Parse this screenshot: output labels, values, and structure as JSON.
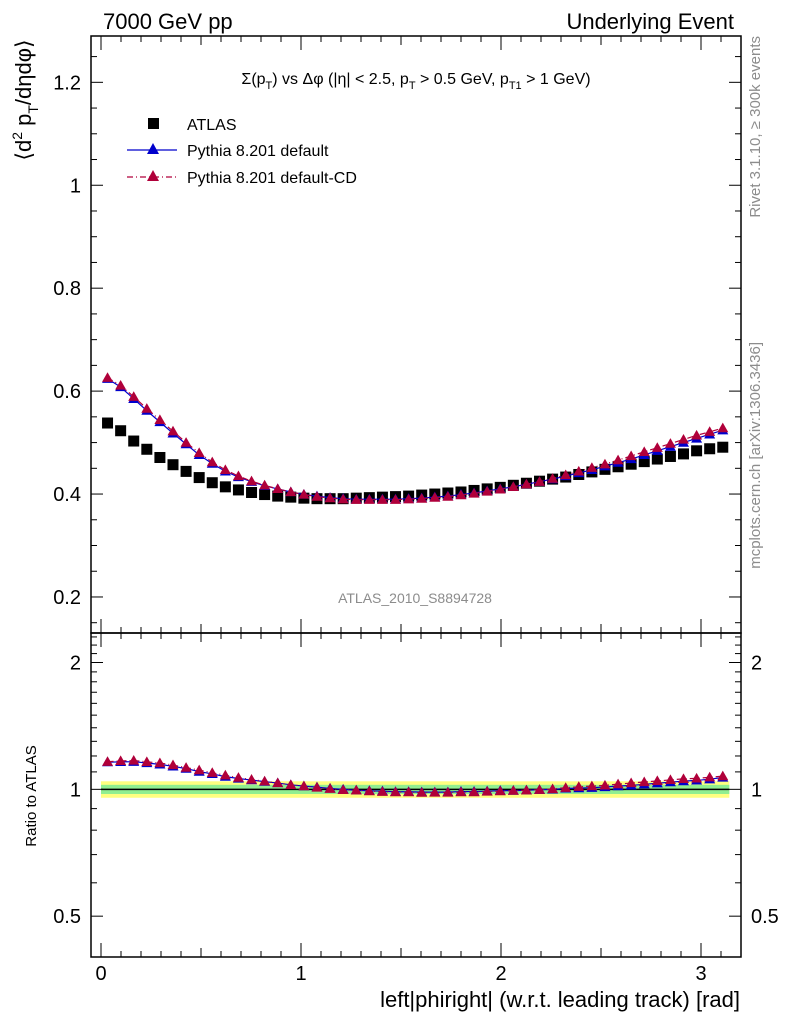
{
  "header": {
    "left": "7000 GeV pp",
    "right": "Underlying Event"
  },
  "side_notes": {
    "rivet": "Rivet 3.1.10, ≥ 300k events",
    "mcplots": "mcplots.cern.ch [arXiv:1306.3436]"
  },
  "plot_title": "Σ(p_T) vs Δφ (|η| < 2.5, p_T > 0.5 GeV, p_T1 > 1 GeV)",
  "analysis_label": "ATLAS_2010_S8894728",
  "colors": {
    "atlas": "#000000",
    "pythia_default": "#0000cc",
    "pythia_cd": "#b0003a",
    "band_yellow": "#ffff80",
    "band_green": "#90ee90"
  },
  "chart_data": [
    {
      "type": "scatter",
      "panel": "main",
      "xlabel": "left|phiright| (w.r.t. leading track) [rad]",
      "ylabel": "⟨d² p_T/dηdφ⟩",
      "xlim": [
        -0.05,
        3.2
      ],
      "ylim": [
        0.13,
        1.29
      ],
      "yticks": [
        0.2,
        0.4,
        0.6,
        0.8,
        1,
        1.2
      ],
      "xticks": [
        0,
        1,
        2,
        3
      ],
      "legend_position": "top-left",
      "x": [
        0.0327,
        0.0982,
        0.1636,
        0.2291,
        0.2945,
        0.36,
        0.4254,
        0.4909,
        0.5563,
        0.6218,
        0.6872,
        0.7527,
        0.8181,
        0.8836,
        0.949,
        1.0145,
        1.0799,
        1.1454,
        1.2108,
        1.2763,
        1.3417,
        1.4072,
        1.4726,
        1.5381,
        1.6035,
        1.669,
        1.7344,
        1.7999,
        1.8653,
        1.9308,
        1.9962,
        2.0617,
        2.1271,
        2.1926,
        2.258,
        2.3235,
        2.3889,
        2.4544,
        2.5198,
        2.5853,
        2.6507,
        2.7162,
        2.7816,
        2.8471,
        2.9125,
        2.978,
        3.0434,
        3.1089
      ],
      "series": [
        {
          "name": "ATLAS",
          "marker": "square",
          "values": [
            0.538,
            0.523,
            0.503,
            0.487,
            0.471,
            0.457,
            0.444,
            0.432,
            0.422,
            0.414,
            0.408,
            0.403,
            0.399,
            0.396,
            0.394,
            0.392,
            0.391,
            0.391,
            0.391,
            0.392,
            0.393,
            0.394,
            0.395,
            0.396,
            0.398,
            0.4,
            0.402,
            0.404,
            0.407,
            0.41,
            0.413,
            0.417,
            0.421,
            0.425,
            0.429,
            0.433,
            0.438,
            0.443,
            0.448,
            0.453,
            0.458,
            0.463,
            0.468,
            0.473,
            0.478,
            0.484,
            0.488,
            0.491
          ]
        },
        {
          "name": "Pythia 8.201 default",
          "marker": "triangle",
          "values": [
            0.624,
            0.608,
            0.585,
            0.562,
            0.54,
            0.518,
            0.497,
            0.476,
            0.459,
            0.444,
            0.433,
            0.424,
            0.416,
            0.41,
            0.404,
            0.399,
            0.396,
            0.393,
            0.391,
            0.39,
            0.39,
            0.39,
            0.39,
            0.391,
            0.392,
            0.394,
            0.396,
            0.399,
            0.402,
            0.406,
            0.41,
            0.414,
            0.419,
            0.424,
            0.429,
            0.435,
            0.441,
            0.447,
            0.454,
            0.461,
            0.468,
            0.476,
            0.484,
            0.492,
            0.5,
            0.508,
            0.516,
            0.524
          ]
        },
        {
          "name": "Pythia 8.201 default-CD",
          "marker": "triangle",
          "values": [
            0.626,
            0.611,
            0.589,
            0.566,
            0.544,
            0.522,
            0.5,
            0.48,
            0.462,
            0.447,
            0.435,
            0.425,
            0.417,
            0.41,
            0.404,
            0.399,
            0.395,
            0.392,
            0.39,
            0.389,
            0.389,
            0.389,
            0.389,
            0.39,
            0.391,
            0.393,
            0.395,
            0.398,
            0.401,
            0.405,
            0.409,
            0.414,
            0.419,
            0.424,
            0.43,
            0.437,
            0.444,
            0.451,
            0.458,
            0.466,
            0.474,
            0.482,
            0.49,
            0.498,
            0.506,
            0.514,
            0.521,
            0.528
          ]
        }
      ]
    },
    {
      "type": "scatter",
      "panel": "ratio",
      "ylabel": "Ratio to ATLAS",
      "xlabel": "left|phiright| (w.r.t. leading track) [rad]",
      "ylim": [
        0.4,
        2.35
      ],
      "ylog": true,
      "yticks": [
        0.5,
        1,
        2
      ],
      "xticks": [
        0,
        1,
        2,
        3
      ],
      "band": {
        "yellow": [
          0.955,
          1.045
        ],
        "green": [
          0.975,
          1.025
        ]
      },
      "x": [
        0.0327,
        0.0982,
        0.1636,
        0.2291,
        0.2945,
        0.36,
        0.4254,
        0.4909,
        0.5563,
        0.6218,
        0.6872,
        0.7527,
        0.8181,
        0.8836,
        0.949,
        1.0145,
        1.0799,
        1.1454,
        1.2108,
        1.2763,
        1.3417,
        1.4072,
        1.4726,
        1.5381,
        1.6035,
        1.669,
        1.7344,
        1.7999,
        1.8653,
        1.9308,
        1.9962,
        2.0617,
        2.1271,
        2.1926,
        2.258,
        2.3235,
        2.3889,
        2.4544,
        2.5198,
        2.5853,
        2.6507,
        2.7162,
        2.7816,
        2.8471,
        2.9125,
        2.978,
        3.0434,
        3.1089
      ],
      "series": [
        {
          "name": "Pythia 8.201 default",
          "marker": "triangle",
          "values": [
            1.16,
            1.162,
            1.163,
            1.155,
            1.146,
            1.134,
            1.12,
            1.102,
            1.088,
            1.072,
            1.061,
            1.052,
            1.043,
            1.035,
            1.025,
            1.018,
            1.012,
            1.005,
            1.0,
            0.995,
            0.992,
            0.99,
            0.987,
            0.987,
            0.985,
            0.985,
            0.985,
            0.988,
            0.988,
            0.99,
            0.993,
            0.993,
            0.995,
            0.998,
            1.0,
            1.005,
            1.007,
            1.009,
            1.013,
            1.018,
            1.022,
            1.028,
            1.034,
            1.04,
            1.046,
            1.05,
            1.057,
            1.067
          ]
        },
        {
          "name": "Pythia 8.201 default-CD",
          "marker": "triangle",
          "values": [
            1.163,
            1.168,
            1.171,
            1.162,
            1.155,
            1.142,
            1.126,
            1.111,
            1.095,
            1.08,
            1.066,
            1.055,
            1.045,
            1.035,
            1.025,
            1.018,
            1.01,
            1.003,
            0.997,
            0.995,
            0.99,
            0.987,
            0.985,
            0.985,
            0.982,
            0.983,
            0.983,
            0.985,
            0.985,
            0.988,
            0.99,
            0.993,
            0.995,
            0.998,
            1.002,
            1.009,
            1.014,
            1.018,
            1.022,
            1.029,
            1.035,
            1.041,
            1.047,
            1.053,
            1.059,
            1.062,
            1.068,
            1.075
          ]
        }
      ]
    }
  ]
}
